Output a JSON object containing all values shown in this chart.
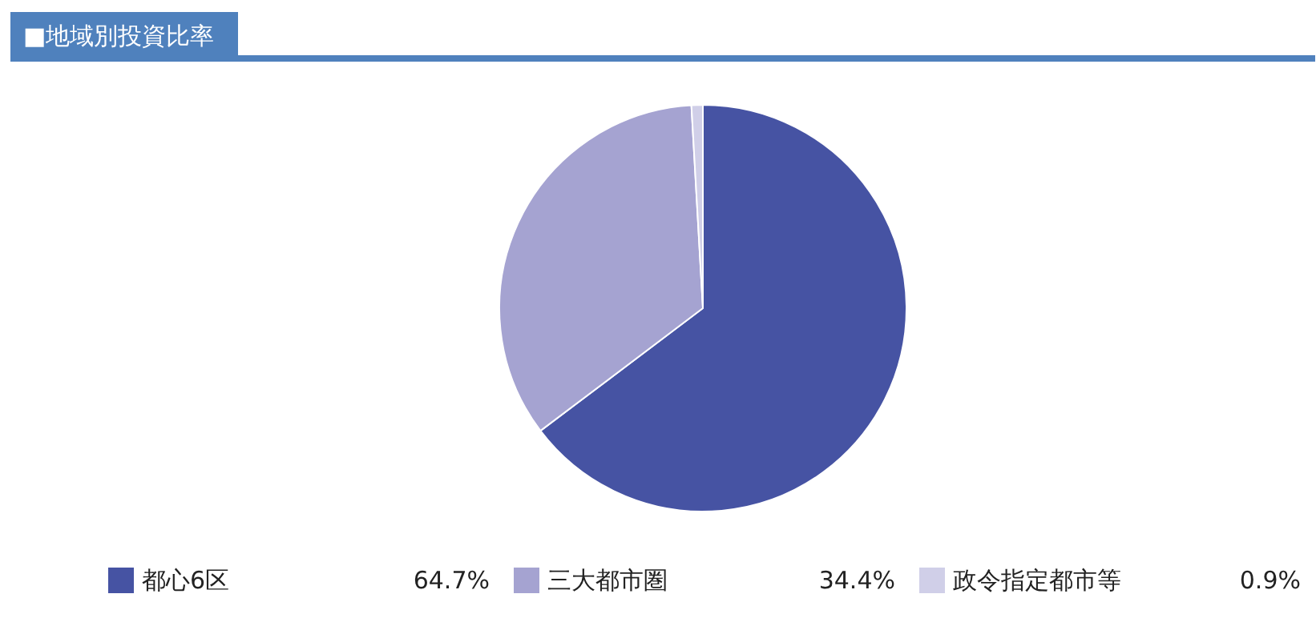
{
  "chart_data": {
    "type": "pie",
    "title": "■地域別投資比率",
    "categories": [
      "都心6区",
      "三大都市圏",
      "政令指定都市等"
    ],
    "values": [
      64.7,
      34.4,
      0.9
    ],
    "colors": [
      "#4653a3",
      "#a5a3d1",
      "#d0cfe8"
    ],
    "value_labels": [
      "64.7%",
      "34.4%",
      "0.9%"
    ],
    "legend": "bottom"
  }
}
